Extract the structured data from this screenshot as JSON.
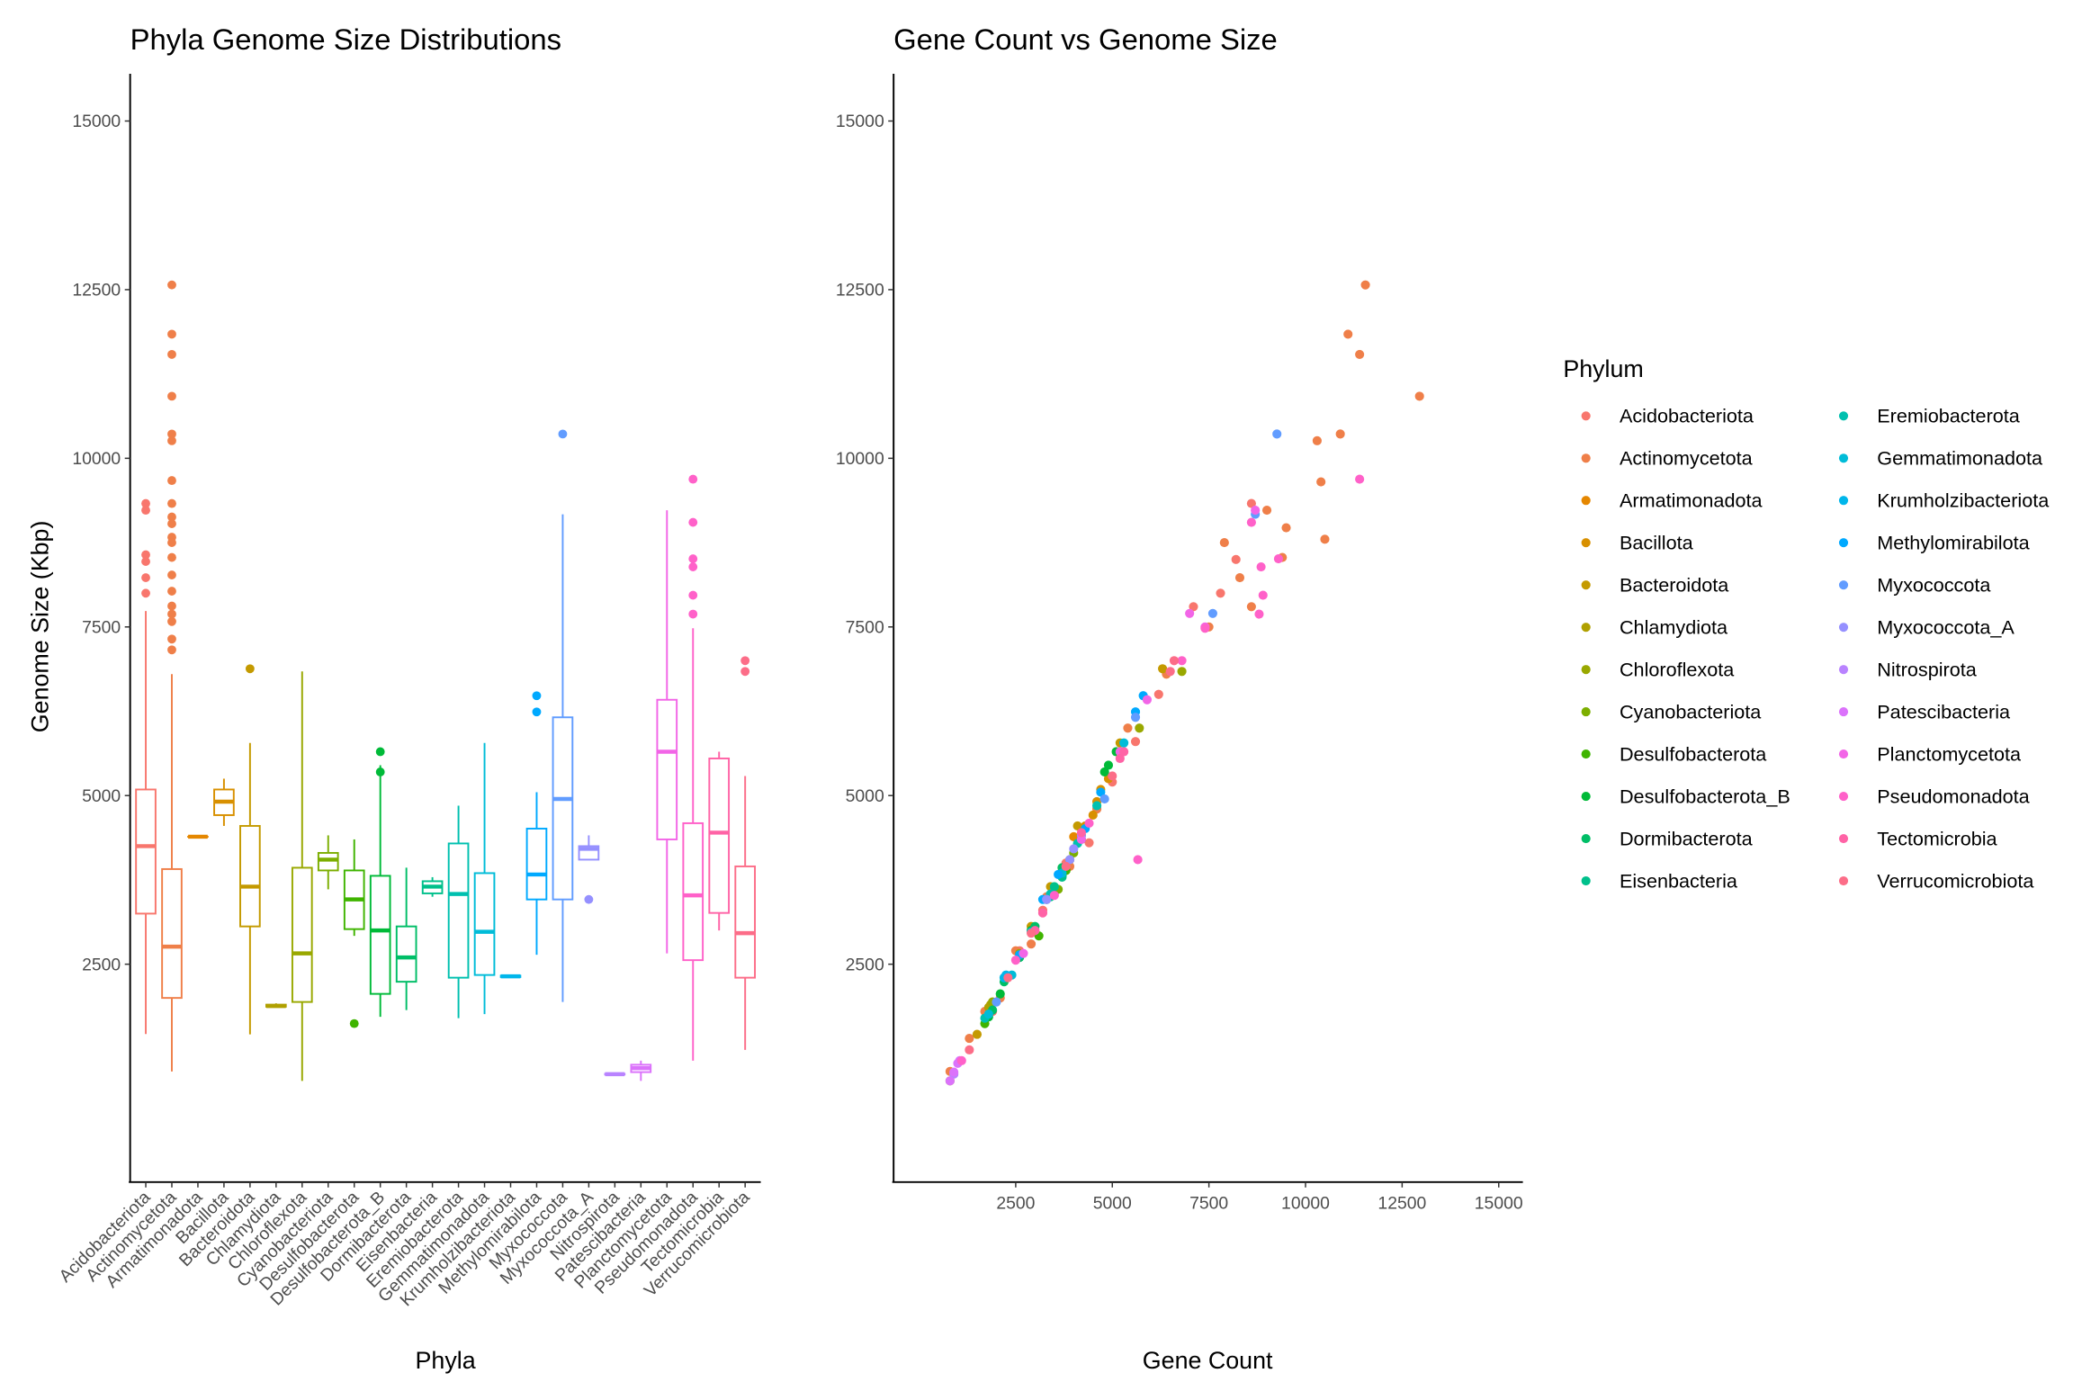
{
  "chart_data": [
    {
      "type": "box",
      "title": "Phyla Genome Size Distributions",
      "x_label": "Phyla",
      "y_label": "Genome Size (Kbp)",
      "ylim": [
        -730,
        15700
      ],
      "yticks": [
        2500,
        5000,
        7500,
        10000,
        12500,
        15000
      ],
      "categories": [
        "Acidobacteriota",
        "Actinomycetota",
        "Armatimonadota",
        "Bacillota",
        "Bacteroidota",
        "Chlamydiota",
        "Chloroflexota",
        "Cyanobacteriota",
        "Desulfobacterota",
        "Desulfobacterota_B",
        "Dormibacterota",
        "Eisenbacteria",
        "Eremiobacterota",
        "Gemmatimonadota",
        "Krumholzibacteriota",
        "Methylomirabilota",
        "Myxococcota",
        "Myxococcota_A",
        "Nitrospirota",
        "Patescibacteria",
        "Planctomycetota",
        "Pseudomonadota",
        "Tectomicrobia",
        "Verrucomicrobiota"
      ],
      "boxes": [
        {
          "color": "#F8766D",
          "min": 1465,
          "q1": 3250,
          "median": 4250,
          "q3": 5090,
          "max": 7735,
          "outliers": [
            9330,
            9230,
            8570,
            8470,
            8230,
            8000
          ]
        },
        {
          "color": "#EF7F49",
          "min": 910,
          "q1": 2000,
          "median": 2760,
          "q3": 3910,
          "max": 6800,
          "outliers": [
            12570,
            11840,
            11540,
            10920,
            10360,
            10260,
            9670,
            9330,
            9130,
            9030,
            8830,
            8750,
            8530,
            8270,
            8030,
            7810,
            7690,
            7580,
            7320,
            7160
          ]
        },
        {
          "color": "#E58700",
          "min": 4390,
          "q1": 4390,
          "median": 4390,
          "q3": 4390,
          "max": 4390,
          "outliers": []
        },
        {
          "color": "#D89000",
          "min": 4550,
          "q1": 4710,
          "median": 4910,
          "q3": 5090,
          "max": 5250,
          "outliers": []
        },
        {
          "color": "#C49A00",
          "min": 1460,
          "q1": 3060,
          "median": 3650,
          "q3": 4550,
          "max": 5780,
          "outliers": [
            6880
          ]
        },
        {
          "color": "#B0A000",
          "min": 1860,
          "q1": 1870,
          "median": 1880,
          "q3": 1900,
          "max": 1920,
          "outliers": []
        },
        {
          "color": "#99A800",
          "min": 770,
          "q1": 1940,
          "median": 2660,
          "q3": 3930,
          "max": 6840,
          "outliers": []
        },
        {
          "color": "#7CAE00",
          "min": 3610,
          "q1": 3890,
          "median": 4050,
          "q3": 4150,
          "max": 4410,
          "outliers": []
        },
        {
          "color": "#3FB400",
          "min": 2920,
          "q1": 3020,
          "median": 3460,
          "q3": 3890,
          "max": 4350,
          "outliers": [
            1620
          ]
        },
        {
          "color": "#00BA38",
          "min": 1720,
          "q1": 2060,
          "median": 3000,
          "q3": 3810,
          "max": 5450,
          "outliers": [
            5650,
            5350
          ]
        },
        {
          "color": "#00BE67",
          "min": 1820,
          "q1": 2240,
          "median": 2600,
          "q3": 3060,
          "max": 3930,
          "outliers": []
        },
        {
          "color": "#00C08B",
          "min": 3500,
          "q1": 3550,
          "median": 3650,
          "q3": 3730,
          "max": 3790,
          "outliers": []
        },
        {
          "color": "#00C0AF",
          "min": 1700,
          "q1": 2300,
          "median": 3540,
          "q3": 4290,
          "max": 4850,
          "outliers": []
        },
        {
          "color": "#00BCD8",
          "min": 1760,
          "q1": 2340,
          "median": 2980,
          "q3": 3850,
          "max": 5780,
          "outliers": []
        },
        {
          "color": "#00B6EB",
          "min": 2300,
          "q1": 2310,
          "median": 2320,
          "q3": 2330,
          "max": 2340,
          "outliers": []
        },
        {
          "color": "#00A9FF",
          "min": 2640,
          "q1": 3460,
          "median": 3830,
          "q3": 4510,
          "max": 5050,
          "outliers": [
            6480,
            6240
          ]
        },
        {
          "color": "#619CFF",
          "min": 1940,
          "q1": 3460,
          "median": 4950,
          "q3": 6160,
          "max": 9170,
          "outliers": [
            10360
          ]
        },
        {
          "color": "#9590FF",
          "min": 4050,
          "q1": 4050,
          "median": 4210,
          "q3": 4250,
          "max": 4410,
          "outliers": [
            3460
          ]
        },
        {
          "color": "#B983FF",
          "min": 860,
          "q1": 865,
          "median": 870,
          "q3": 875,
          "max": 880,
          "outliers": []
        },
        {
          "color": "#DB72FB",
          "min": 770,
          "q1": 900,
          "median": 960,
          "q3": 1010,
          "max": 1070,
          "outliers": []
        },
        {
          "color": "#F265E7",
          "min": 2660,
          "q1": 4350,
          "median": 5650,
          "q3": 6420,
          "max": 9230,
          "outliers": []
        },
        {
          "color": "#FF61C9",
          "min": 1070,
          "q1": 2560,
          "median": 3520,
          "q3": 4590,
          "max": 7480,
          "outliers": [
            9690,
            9050,
            8510,
            8390,
            7970,
            7690
          ]
        },
        {
          "color": "#FF63A6",
          "min": 3000,
          "q1": 3260,
          "median": 4450,
          "q3": 5550,
          "max": 5650,
          "outliers": []
        },
        {
          "color": "#FC6D88",
          "min": 1230,
          "q1": 2300,
          "median": 2960,
          "q3": 3950,
          "max": 5290,
          "outliers": [
            7000,
            6840
          ]
        }
      ]
    },
    {
      "type": "scatter",
      "title": "Gene Count vs Genome Size",
      "x_label": "Gene Count",
      "legend_title": "Phylum",
      "xlim": [
        -660,
        15625
      ],
      "xticks": [
        2500,
        5000,
        7500,
        10000,
        12500,
        15000
      ],
      "ylim": [
        -730,
        15700
      ],
      "yticks": [
        2500,
        5000,
        7500,
        10000,
        12500,
        15000
      ],
      "series": [
        {
          "name": "Acidobacteriota",
          "color": "#F8766D",
          "x": [
            1900,
            2600,
            3200,
            3800,
            4400,
            5000,
            5600,
            6200,
            7100,
            8200,
            8600,
            7800
          ],
          "y": [
            1800,
            2700,
            3300,
            4000,
            4300,
            5200,
            5800,
            6500,
            7800,
            8500,
            9330,
            8000
          ]
        },
        {
          "name": "Actinomycetota",
          "color": "#EF7F49",
          "x": [
            800,
            1300,
            1700,
            2100,
            2500,
            2900,
            3300,
            3900,
            4600,
            5400,
            6400,
            7500,
            8300,
            9000,
            9400,
            9500,
            10300,
            10900,
            10400,
            10500,
            11400,
            11100,
            11550,
            12950,
            8600,
            7900
          ],
          "y": [
            910,
            1400,
            1800,
            2000,
            2700,
            2800,
            3500,
            3950,
            4800,
            6000,
            6800,
            7500,
            8230,
            9230,
            8530,
            8970,
            10260,
            10360,
            9650,
            8800,
            11540,
            11840,
            12570,
            10920,
            7800,
            8750
          ]
        },
        {
          "name": "Armatimonadota",
          "color": "#E58700",
          "x": [
            4000
          ],
          "y": [
            4390
          ]
        },
        {
          "name": "Bacillota",
          "color": "#D89000",
          "x": [
            4300,
            4500,
            4600,
            4700,
            4900
          ],
          "y": [
            4550,
            4710,
            4910,
            5090,
            5250
          ]
        },
        {
          "name": "Bacteroidota",
          "color": "#C49A00",
          "x": [
            1500,
            2900,
            3400,
            4100,
            5200,
            6300
          ],
          "y": [
            1460,
            3060,
            3650,
            4550,
            5780,
            6880
          ]
        },
        {
          "name": "Chlamydiota",
          "color": "#B0A000",
          "x": [
            1800,
            1850
          ],
          "y": [
            1860,
            1900
          ]
        },
        {
          "name": "Chloroflexota",
          "color": "#99A800",
          "x": [
            800,
            1900,
            2600,
            3700,
            5700,
            6800
          ],
          "y": [
            770,
            1940,
            2660,
            3930,
            6000,
            6840
          ]
        },
        {
          "name": "Cyanobacteriota",
          "color": "#7CAE00",
          "x": [
            3600,
            3800,
            3900,
            4000,
            4200
          ],
          "y": [
            3610,
            3890,
            4050,
            4150,
            4410
          ]
        },
        {
          "name": "Desulfobacterota",
          "color": "#3FB400",
          "x": [
            1700,
            3100,
            3300,
            3800,
            4200
          ],
          "y": [
            1620,
            2920,
            3460,
            3890,
            4350
          ]
        },
        {
          "name": "Desulfobacterota_B",
          "color": "#00BA38",
          "x": [
            1800,
            2100,
            2900,
            3700,
            4900,
            4800,
            5100
          ],
          "y": [
            1720,
            2060,
            3000,
            3810,
            5450,
            5350,
            5650
          ]
        },
        {
          "name": "Dormibacterota",
          "color": "#00BE67",
          "x": [
            1900,
            2200,
            2600,
            3000,
            3700
          ],
          "y": [
            1820,
            2240,
            2600,
            3060,
            3930
          ]
        },
        {
          "name": "Eisenbacteria",
          "color": "#00C08B",
          "x": [
            3400,
            3500,
            3700
          ],
          "y": [
            3500,
            3650,
            3790
          ]
        },
        {
          "name": "Eremiobacterota",
          "color": "#00C0AF",
          "x": [
            1700,
            2200,
            3400,
            4100,
            4600
          ],
          "y": [
            1700,
            2300,
            3540,
            4290,
            4850
          ]
        },
        {
          "name": "Gemmatimonadota",
          "color": "#00BCD8",
          "x": [
            1800,
            2400,
            2900,
            3700,
            5300
          ],
          "y": [
            1760,
            2340,
            2980,
            3850,
            5780
          ]
        },
        {
          "name": "Krumholzibacteriota",
          "color": "#00B6EB",
          "x": [
            2200,
            2250
          ],
          "y": [
            2300,
            2340
          ]
        },
        {
          "name": "Methylomirabilota",
          "color": "#00A9FF",
          "x": [
            2600,
            3200,
            3600,
            4300,
            4700,
            5800,
            5600
          ],
          "y": [
            2640,
            3460,
            3830,
            4510,
            5050,
            6480,
            6240
          ]
        },
        {
          "name": "Myxococcota",
          "color": "#619CFF",
          "x": [
            2000,
            3300,
            4800,
            5600,
            7600,
            8700,
            9260
          ],
          "y": [
            1940,
            3460,
            4950,
            6160,
            7700,
            9170,
            10360
          ]
        },
        {
          "name": "Myxococcota_A",
          "color": "#9590FF",
          "x": [
            3300,
            3900,
            4000,
            4200
          ],
          "y": [
            3460,
            4050,
            4210,
            4410
          ]
        },
        {
          "name": "Nitrospirota",
          "color": "#B983FF",
          "x": [
            900
          ],
          "y": [
            870
          ]
        },
        {
          "name": "Patescibacteria",
          "color": "#DB72FB",
          "x": [
            800,
            900,
            1000,
            1050
          ],
          "y": [
            770,
            900,
            1030,
            1070
          ]
        },
        {
          "name": "Planctomycetota",
          "color": "#F265E7",
          "x": [
            2700,
            4200,
            5200,
            5900,
            7400,
            7000,
            8700
          ],
          "y": [
            2660,
            4350,
            5650,
            6420,
            7500,
            7700,
            9230
          ]
        },
        {
          "name": "Pseudomonadota",
          "color": "#FF61C9",
          "x": [
            1100,
            2500,
            3500,
            4400,
            5660,
            6800,
            7400,
            8800,
            8900,
            8850,
            9300,
            8600,
            11400
          ],
          "y": [
            1070,
            2560,
            3520,
            4590,
            4050,
            7000,
            7480,
            7690,
            7970,
            8390,
            8510,
            9050,
            9690
          ]
        },
        {
          "name": "Tectomicrobia",
          "color": "#FF63A6",
          "x": [
            3000,
            3200,
            4200,
            5200,
            5300
          ],
          "y": [
            3000,
            3260,
            4450,
            5550,
            5650
          ]
        },
        {
          "name": "Verrucomicrobiota",
          "color": "#FC6D88",
          "x": [
            1300,
            2300,
            2900,
            3800,
            5000,
            6600,
            6500
          ],
          "y": [
            1230,
            2300,
            2960,
            3950,
            5290,
            7000,
            6840
          ]
        }
      ]
    }
  ]
}
